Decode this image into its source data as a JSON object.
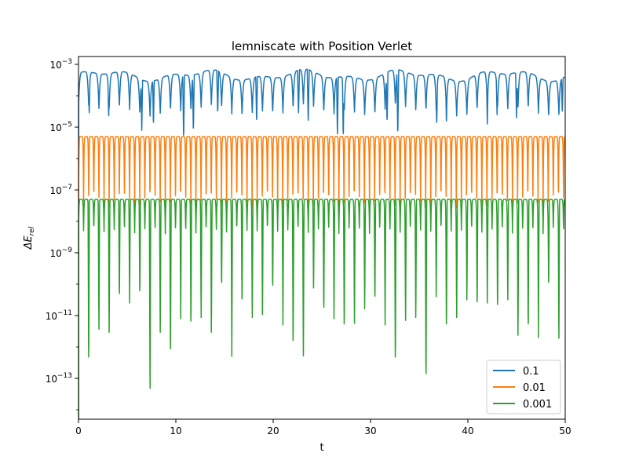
{
  "chart_data": {
    "type": "line",
    "title": "lemniscate with Position Verlet",
    "xlabel": "t",
    "ylabel": "ΔE_rel",
    "xlim": [
      0,
      50
    ],
    "ylim_log10": [
      -14.3,
      -2.75
    ],
    "yscale": "log",
    "grid": false,
    "legend_position": "lower-right",
    "x_ticks": [
      0,
      10,
      20,
      30,
      40,
      50
    ],
    "y_ticks": [
      {
        "exp": -3,
        "base": "10",
        "label": "−3"
      },
      {
        "exp": -5,
        "base": "10",
        "label": "−5"
      },
      {
        "exp": -7,
        "base": "10",
        "label": "−7"
      },
      {
        "exp": -9,
        "base": "10",
        "label": "−9"
      },
      {
        "exp": -11,
        "base": "10",
        "label": "−11"
      },
      {
        "exp": -13,
        "base": "10",
        "label": "−13"
      }
    ],
    "series": [
      {
        "name": "0.1",
        "color": "#1f77b4",
        "period": 1.05,
        "peak_log10": -3.35,
        "trough_log10": -4.5,
        "deep_dips": [
          {
            "x": 1.1,
            "log10": -4.6
          },
          {
            "x": 3.1,
            "log10": -4.7
          },
          {
            "x": 6.5,
            "log10": -5.1
          },
          {
            "x": 7.7,
            "log10": -5.0
          },
          {
            "x": 10.8,
            "log10": -5.45
          },
          {
            "x": 11.8,
            "log10": -5.2
          },
          {
            "x": 14.3,
            "log10": -4.6
          },
          {
            "x": 18.3,
            "log10": -4.9
          },
          {
            "x": 22.6,
            "log10": -4.6
          },
          {
            "x": 23.6,
            "log10": -4.85
          },
          {
            "x": 26.6,
            "log10": -5.3
          },
          {
            "x": 27.2,
            "log10": -5.4
          },
          {
            "x": 31.7,
            "log10": -4.9
          },
          {
            "x": 32.8,
            "log10": -5.3
          },
          {
            "x": 36.8,
            "log10": -5.0
          },
          {
            "x": 37.8,
            "log10": -4.95
          },
          {
            "x": 42.0,
            "log10": -4.9
          },
          {
            "x": 43.0,
            "log10": -4.6
          },
          {
            "x": 45.0,
            "log10": -4.7
          },
          {
            "x": 49.7,
            "log10": -4.6
          }
        ]
      },
      {
        "name": "0.01",
        "color": "#ff7f0e",
        "period": 0.5245,
        "peak_log10": -5.3,
        "trough_log10": -7.6
      },
      {
        "name": "0.001",
        "color": "#2ca02c",
        "period": 0.5245,
        "peak_log10": -7.3,
        "trough_log10": -8.4,
        "spikes": [
          {
            "x": 1.05,
            "log10": -13.0
          },
          {
            "x": 2.1,
            "log10": -11.7
          },
          {
            "x": 3.15,
            "log10": -11.8
          },
          {
            "x": 4.2,
            "log10": -10.7
          },
          {
            "x": 5.25,
            "log10": -10.6
          },
          {
            "x": 6.3,
            "log10": -10.6
          },
          {
            "x": 7.35,
            "log10": -13.7
          },
          {
            "x": 8.4,
            "log10": -11.8
          },
          {
            "x": 9.45,
            "log10": -12.7
          },
          {
            "x": 10.5,
            "log10": -11.1
          },
          {
            "x": 11.55,
            "log10": -11.7
          },
          {
            "x": 12.6,
            "log10": -11.3
          },
          {
            "x": 13.65,
            "log10": -11.8
          },
          {
            "x": 14.7,
            "log10": -10.3
          },
          {
            "x": 15.75,
            "log10": -12.3
          },
          {
            "x": 16.8,
            "log10": -10.9
          },
          {
            "x": 17.85,
            "log10": -11.3
          },
          {
            "x": 18.9,
            "log10": -11.2
          },
          {
            "x": 19.95,
            "log10": -10.4
          },
          {
            "x": 21.0,
            "log10": -11.3
          },
          {
            "x": 22.05,
            "log10": -12.4
          },
          {
            "x": 23.1,
            "log10": -12.6
          },
          {
            "x": 24.15,
            "log10": -10.3
          },
          {
            "x": 25.2,
            "log10": -11.2
          },
          {
            "x": 26.25,
            "log10": -11.1
          },
          {
            "x": 27.3,
            "log10": -11.8
          },
          {
            "x": 28.35,
            "log10": -11.5
          },
          {
            "x": 29.4,
            "log10": -11.0
          },
          {
            "x": 30.45,
            "log10": -10.8
          },
          {
            "x": 31.5,
            "log10": -11.3
          },
          {
            "x": 32.55,
            "log10": -13.0
          },
          {
            "x": 33.6,
            "log10": -11.4
          },
          {
            "x": 34.65,
            "log10": -11.3
          },
          {
            "x": 35.7,
            "log10": -13.6
          },
          {
            "x": 36.75,
            "log10": -10.4
          },
          {
            "x": 37.8,
            "log10": -11.8
          },
          {
            "x": 38.85,
            "log10": -11.3
          },
          {
            "x": 39.9,
            "log10": -10.7
          },
          {
            "x": 40.95,
            "log10": -11.0
          },
          {
            "x": 42.0,
            "log10": -10.6
          },
          {
            "x": 43.05,
            "log10": -11.1
          },
          {
            "x": 44.1,
            "log10": -10.7
          },
          {
            "x": 45.15,
            "log10": -11.9
          },
          {
            "x": 46.2,
            "log10": -11.8
          },
          {
            "x": 47.25,
            "log10": -11.7
          },
          {
            "x": 48.3,
            "log10": -10.3
          },
          {
            "x": 49.35,
            "log10": -12.0
          }
        ]
      }
    ]
  }
}
